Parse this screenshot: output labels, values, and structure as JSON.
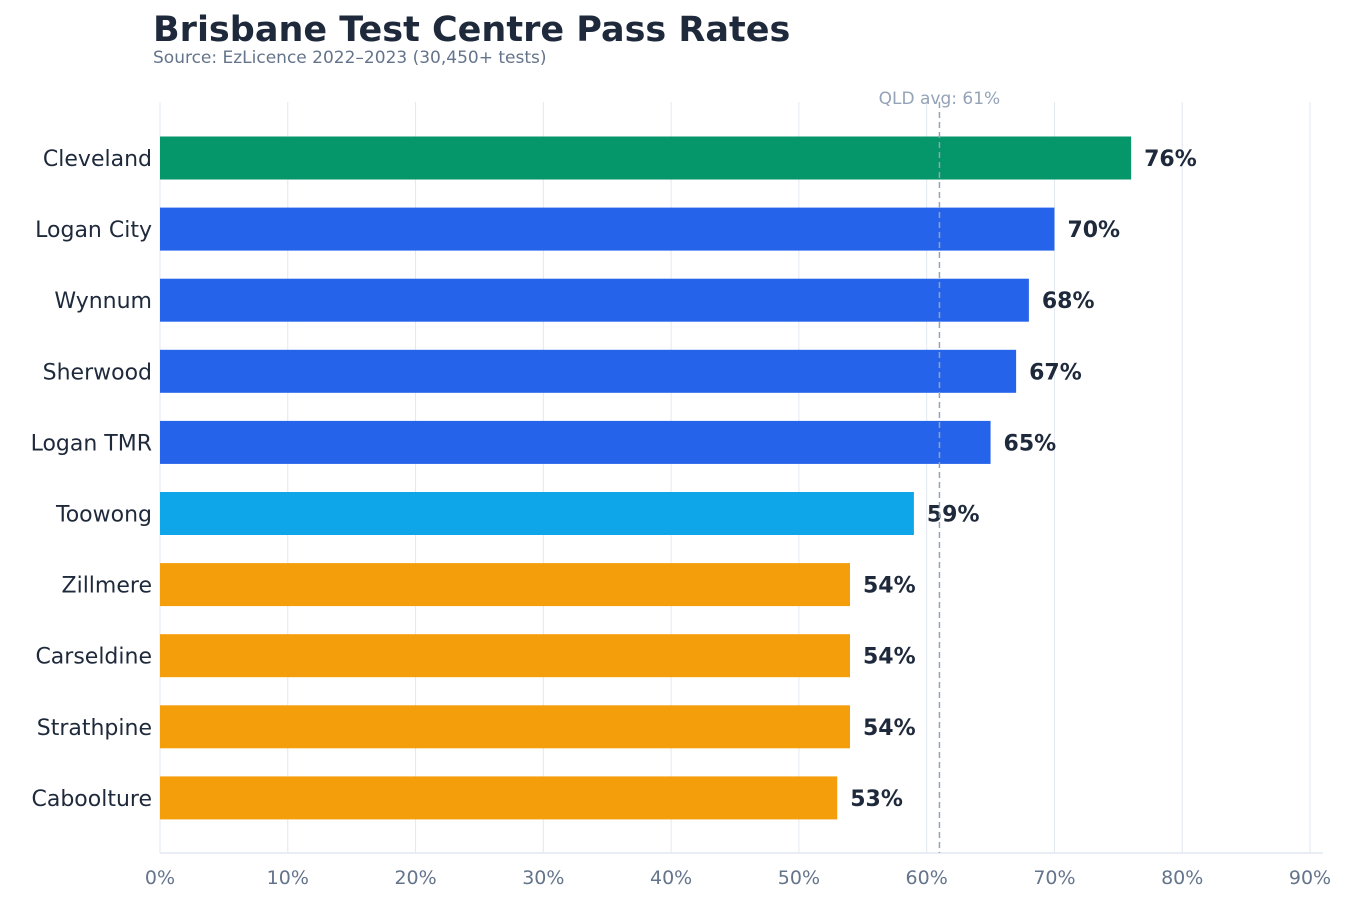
{
  "chart_data": {
    "type": "bar",
    "orientation": "horizontal",
    "title": "Brisbane Test Centre Pass Rates",
    "subtitle": "Source: EzLicence 2022–2023 (30,450+ tests)",
    "categories": [
      "Cleveland",
      "Logan City",
      "Wynnum",
      "Sherwood",
      "Logan TMR",
      "Toowong",
      "Zillmere",
      "Carseldine",
      "Strathpine",
      "Caboolture"
    ],
    "values": [
      76,
      70,
      68,
      67,
      65,
      59,
      54,
      54,
      54,
      53
    ],
    "data_labels": [
      "76%",
      "70%",
      "68%",
      "67%",
      "65%",
      "59%",
      "54%",
      "54%",
      "54%",
      "53%"
    ],
    "bar_colors": [
      "#059669",
      "#2563eb",
      "#2563eb",
      "#2563eb",
      "#2563eb",
      "#0ea5e9",
      "#f59e0b",
      "#f59e0b",
      "#f59e0b",
      "#f59e0b"
    ],
    "xlim": [
      0,
      91
    ],
    "x_ticks": [
      0,
      10,
      20,
      30,
      40,
      50,
      60,
      70,
      80,
      90
    ],
    "x_tick_labels": [
      "0%",
      "10%",
      "20%",
      "30%",
      "40%",
      "50%",
      "60%",
      "70%",
      "80%",
      "90%"
    ],
    "xlabel": "",
    "ylabel": "",
    "grid": "vertical",
    "reference_line": {
      "value": 61,
      "label": "QLD avg: 61%",
      "color": "#94a3b8",
      "style": "dashed"
    }
  }
}
